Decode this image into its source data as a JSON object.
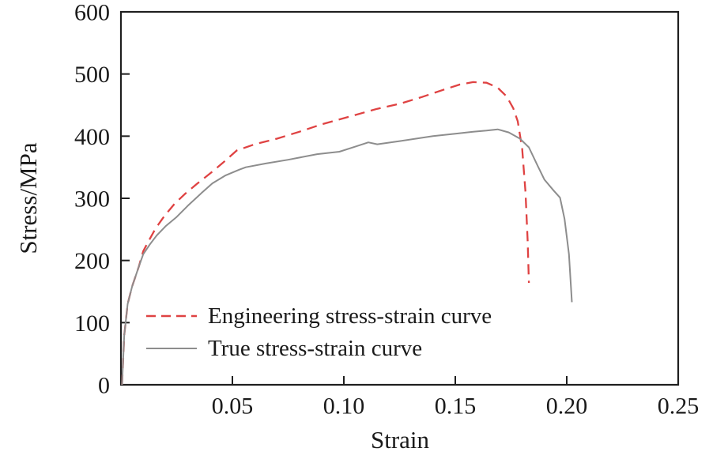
{
  "chart_data": {
    "type": "line",
    "title": "",
    "xlabel": "Strain",
    "ylabel": "Stress/MPa",
    "xlim": [
      0,
      0.25
    ],
    "ylim": [
      0,
      600
    ],
    "grid": false,
    "legend_position": "inside-lower-left",
    "x_ticks": [
      0.05,
      0.1,
      0.15,
      0.2,
      0.25
    ],
    "x_tick_labels": [
      "0.05",
      "0.10",
      "0.15",
      "0.20",
      "0.25"
    ],
    "y_ticks": [
      0,
      100,
      200,
      300,
      400,
      500,
      600
    ],
    "y_tick_labels": [
      "0",
      "100",
      "200",
      "300",
      "400",
      "500",
      "600"
    ],
    "axis_color": "#1f1f1f",
    "series": [
      {
        "name": "Engineering stress-strain curve",
        "color": "#df4242",
        "style": "dashed",
        "points": [
          [
            0.0005,
            0
          ],
          [
            0.0015,
            80
          ],
          [
            0.003,
            130
          ],
          [
            0.005,
            158
          ],
          [
            0.008,
            190
          ],
          [
            0.01,
            215
          ],
          [
            0.0125,
            232
          ],
          [
            0.0156,
            252
          ],
          [
            0.0196,
            272
          ],
          [
            0.024,
            291
          ],
          [
            0.029,
            308
          ],
          [
            0.034,
            323
          ],
          [
            0.04,
            340
          ],
          [
            0.046,
            358
          ],
          [
            0.052,
            377
          ],
          [
            0.06,
            387
          ],
          [
            0.07,
            396
          ],
          [
            0.08,
            407
          ],
          [
            0.09,
            419
          ],
          [
            0.103,
            432
          ],
          [
            0.115,
            444
          ],
          [
            0.125,
            452
          ],
          [
            0.135,
            463
          ],
          [
            0.145,
            475
          ],
          [
            0.152,
            483
          ],
          [
            0.158,
            487
          ],
          [
            0.164,
            486
          ],
          [
            0.169,
            478
          ],
          [
            0.173,
            464
          ],
          [
            0.176,
            445
          ],
          [
            0.178,
            424
          ],
          [
            0.18,
            380
          ],
          [
            0.1815,
            310
          ],
          [
            0.1825,
            230
          ],
          [
            0.183,
            164
          ]
        ]
      },
      {
        "name": "True stress-strain curve",
        "color": "#8d8d8d",
        "style": "solid",
        "points": [
          [
            0.0005,
            0
          ],
          [
            0.0015,
            80
          ],
          [
            0.003,
            130
          ],
          [
            0.005,
            158
          ],
          [
            0.008,
            190
          ],
          [
            0.01,
            210
          ],
          [
            0.013,
            226
          ],
          [
            0.016,
            240
          ],
          [
            0.02,
            255
          ],
          [
            0.025,
            270
          ],
          [
            0.03,
            288
          ],
          [
            0.036,
            308
          ],
          [
            0.041,
            324
          ],
          [
            0.047,
            337
          ],
          [
            0.053,
            346
          ],
          [
            0.056,
            350
          ],
          [
            0.065,
            356
          ],
          [
            0.075,
            362
          ],
          [
            0.088,
            371
          ],
          [
            0.098,
            375
          ],
          [
            0.105,
            383
          ],
          [
            0.111,
            390
          ],
          [
            0.115,
            387
          ],
          [
            0.125,
            392
          ],
          [
            0.14,
            400
          ],
          [
            0.15,
            404
          ],
          [
            0.158,
            407
          ],
          [
            0.164,
            409
          ],
          [
            0.169,
            411
          ],
          [
            0.174,
            406
          ],
          [
            0.179,
            396
          ],
          [
            0.183,
            382
          ],
          [
            0.187,
            352
          ],
          [
            0.19,
            330
          ],
          [
            0.194,
            313
          ],
          [
            0.197,
            301
          ],
          [
            0.199,
            267
          ],
          [
            0.201,
            210
          ],
          [
            0.2023,
            133
          ]
        ]
      }
    ]
  }
}
